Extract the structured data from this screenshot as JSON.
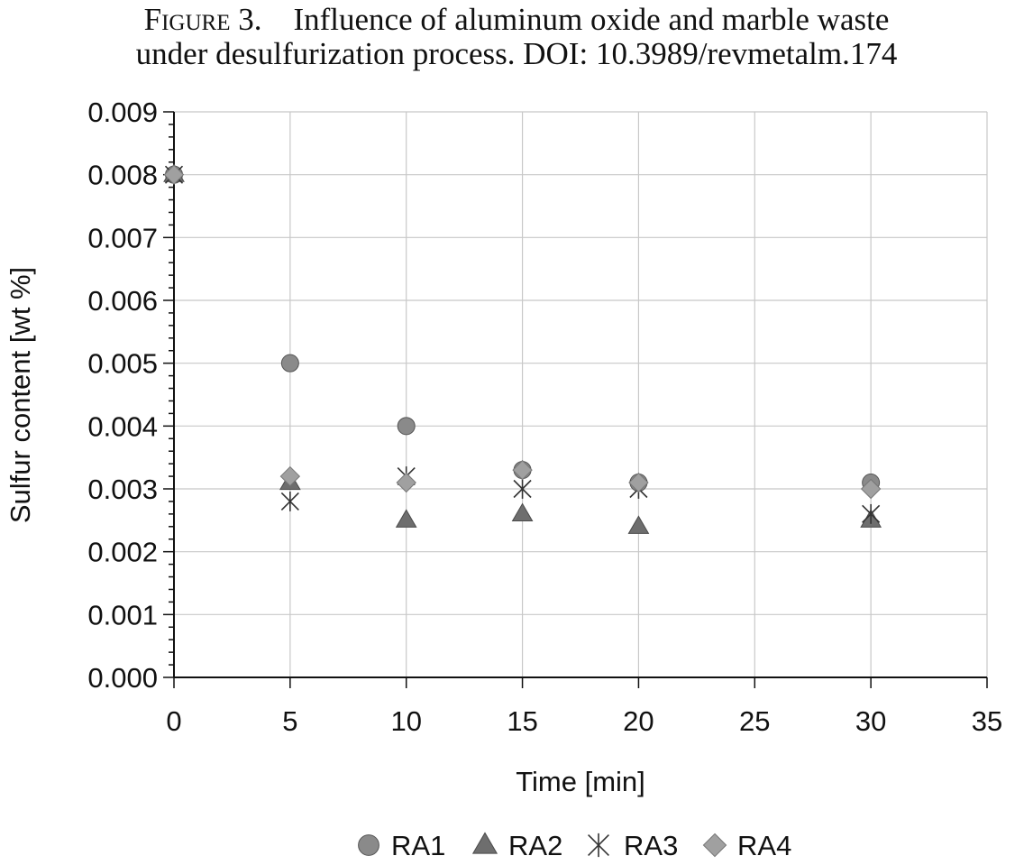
{
  "caption": {
    "label": "Figure 3.",
    "line1": "Influence of aluminum oxide and marble waste",
    "line2": "under desulfurization process. DOI: 10.3989/revmetalm.174"
  },
  "chart_data": {
    "type": "scatter",
    "xlabel": "Time [min]",
    "ylabel": "Sulfur content [wt %]",
    "xlim": [
      0,
      35
    ],
    "ylim": [
      0,
      0.009
    ],
    "xticks": [
      0,
      5,
      10,
      15,
      20,
      25,
      30,
      35
    ],
    "xtick_labels": [
      "0",
      "5",
      "10",
      "15",
      "20",
      "25",
      "30",
      "35"
    ],
    "yticks": [
      0,
      0.001,
      0.002,
      0.003,
      0.004,
      0.005,
      0.006,
      0.007,
      0.008,
      0.009
    ],
    "ytick_labels": [
      "0.000",
      "0.001",
      "0.002",
      "0.003",
      "0.004",
      "0.005",
      "0.006",
      "0.007",
      "0.008",
      "0.009"
    ],
    "grid": true,
    "legend_position": "bottom",
    "series": [
      {
        "name": "RA1",
        "marker": "circle",
        "color": "#8a8a8a",
        "x": [
          0,
          5,
          10,
          15,
          20,
          30
        ],
        "y": [
          0.008,
          0.005,
          0.004,
          0.0033,
          0.0031,
          0.0031
        ]
      },
      {
        "name": "RA2",
        "marker": "triangle",
        "color": "#6e6e6e",
        "x": [
          0,
          5,
          10,
          15,
          20,
          30
        ],
        "y": [
          0.008,
          0.0031,
          0.0025,
          0.0026,
          0.0024,
          0.0025
        ]
      },
      {
        "name": "RA3",
        "marker": "asterisk",
        "color": "#333333",
        "x": [
          0,
          5,
          10,
          15,
          20,
          30
        ],
        "y": [
          0.008,
          0.0028,
          0.0032,
          0.003,
          0.003,
          0.0026
        ]
      },
      {
        "name": "RA4",
        "marker": "diamond",
        "color": "#a0a0a0",
        "x": [
          0,
          5,
          10,
          15,
          20,
          30
        ],
        "y": [
          0.008,
          0.0032,
          0.0031,
          0.0033,
          0.0031,
          0.003
        ]
      }
    ]
  }
}
